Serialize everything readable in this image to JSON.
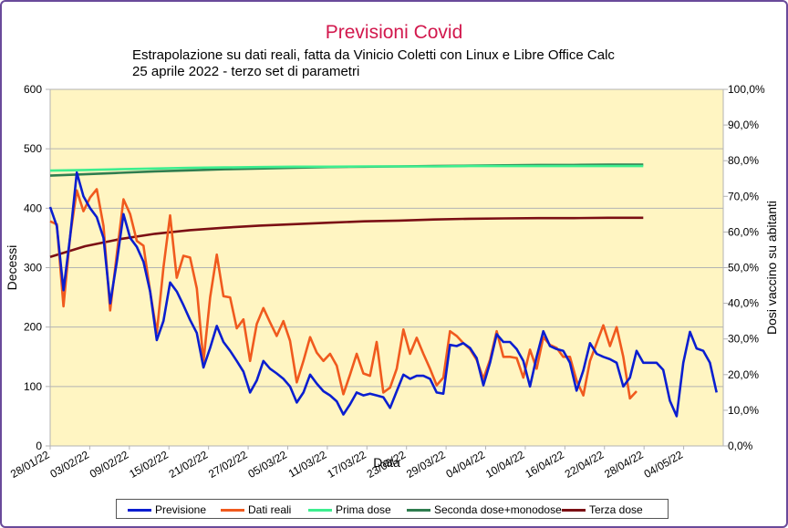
{
  "title": "Previsioni Covid",
  "subtitle1": "Estrapolazione su dati reali, fatta da Vinicio Coletti con Linux e Libre Office Calc",
  "subtitle2": "25 aprile 2022 - terzo set di parametri",
  "chart_data": {
    "type": "line",
    "title": "Previsioni Covid",
    "xlabel": "Data",
    "ylabel": "Decessi",
    "y2label": "Dosi vaccino su abitanti",
    "ylim": [
      0,
      600
    ],
    "y2lim": [
      0,
      1
    ],
    "yticks": [
      "0",
      "100",
      "200",
      "300",
      "400",
      "500",
      "600"
    ],
    "y2ticks": [
      "0,0%",
      "10,0%",
      "20,0%",
      "30,0%",
      "40,0%",
      "50,0%",
      "60,0%",
      "70,0%",
      "80,0%",
      "90,0%",
      "100,0%"
    ],
    "x_start": "28/01/22",
    "x_end": "08/05/22",
    "xticks": [
      "28/01/22",
      "03/02/22",
      "09/02/22",
      "15/02/22",
      "21/02/22",
      "27/02/22",
      "05/03/22",
      "11/03/22",
      "17/03/22",
      "23/03/22",
      "29/03/22",
      "04/04/22",
      "10/04/22",
      "16/04/22",
      "22/04/22",
      "28/04/22",
      "04/05/22"
    ],
    "grid": "horizontal",
    "legend_position": "bottom",
    "series": [
      {
        "name": "Previsione",
        "axis": "left",
        "color": "#0a1ed0",
        "values": [
          402,
          370,
          262,
          352,
          460,
          420,
          400,
          385,
          350,
          240,
          310,
          390,
          350,
          335,
          310,
          260,
          178,
          210,
          275,
          260,
          237,
          212,
          190,
          132,
          165,
          202,
          175,
          160,
          143,
          125,
          90,
          110,
          143,
          130,
          122,
          113,
          100,
          73,
          90,
          120,
          105,
          92,
          85,
          75,
          53,
          70,
          90,
          85,
          88,
          85,
          82,
          64,
          92,
          120,
          113,
          118,
          118,
          113,
          90,
          88,
          170,
          168,
          173,
          165,
          148,
          102,
          140,
          188,
          175,
          175,
          163,
          143,
          100,
          150,
          193,
          168,
          163,
          160,
          140,
          93,
          127,
          173,
          155,
          150,
          146,
          140,
          100,
          115,
          160,
          140,
          140,
          140,
          128,
          76,
          50,
          140,
          192,
          164,
          160,
          140,
          90
        ]
      },
      {
        "name": "Dati reali",
        "axis": "left",
        "color": "#f05a1e",
        "values": [
          378,
          373,
          235,
          353,
          430,
          395,
          418,
          432,
          370,
          228,
          323,
          415,
          390,
          345,
          337,
          260,
          190,
          300,
          388,
          283,
          320,
          317,
          265,
          142,
          250,
          322,
          252,
          250,
          198,
          213,
          143,
          205,
          232,
          208,
          185,
          210,
          177,
          107,
          143,
          183,
          157,
          143,
          155,
          135,
          87,
          120,
          155,
          122,
          118,
          175,
          90,
          98,
          130,
          196,
          155,
          182,
          155,
          130,
          102,
          115,
          193,
          185,
          173,
          163,
          145,
          113,
          145,
          193,
          150,
          150,
          148,
          115,
          162,
          130,
          183,
          170,
          165,
          150,
          150,
          110,
          85,
          143,
          173,
          203,
          168,
          200,
          150,
          80,
          92
        ]
      },
      {
        "name": "Prima dose",
        "axis": "right",
        "color": "#3dee8f",
        "values": [
          0.772,
          0.774,
          0.776,
          0.778,
          0.78,
          0.781,
          0.782,
          0.783,
          0.783,
          0.784,
          0.784,
          0.784,
          0.785,
          0.785,
          0.785,
          0.785,
          0.785,
          0.785
        ]
      },
      {
        "name": "Seconda dose+monodose",
        "axis": "right",
        "color": "#2f7d4f",
        "values": [
          0.758,
          0.762,
          0.766,
          0.77,
          0.773,
          0.776,
          0.778,
          0.78,
          0.782,
          0.783,
          0.784,
          0.785,
          0.786,
          0.787,
          0.788,
          0.788,
          0.789,
          0.789
        ]
      },
      {
        "name": "Terza dose",
        "axis": "right",
        "color": "#7b0f14",
        "values": [
          0.53,
          0.56,
          0.58,
          0.595,
          0.605,
          0.612,
          0.618,
          0.622,
          0.626,
          0.63,
          0.632,
          0.635,
          0.637,
          0.638,
          0.639,
          0.639,
          0.64,
          0.64
        ]
      }
    ]
  }
}
